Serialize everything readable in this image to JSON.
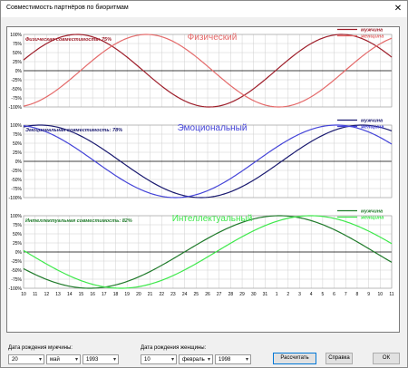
{
  "window": {
    "title": "Совместимость партнёров по биоритмам",
    "close_glyph": "✕"
  },
  "panels": [
    {
      "key": "physical",
      "heading": "Физический",
      "compat_text": "Физическая совместимость: 75%",
      "color_light": "#e46a6a",
      "color_dark": "#9e1e2a",
      "legend": [
        "мужчина",
        "женщина"
      ]
    },
    {
      "key": "emotional",
      "heading": "Эмоциональный",
      "compat_text": "Эмоциональная совместимость: 78%",
      "color_light": "#4444d8",
      "color_dark": "#1a1a70",
      "legend": [
        "мужчина",
        "женщина"
      ]
    },
    {
      "key": "intellectual",
      "heading": "Интеллектуальный",
      "compat_text": "Интеллектуальная совместимость: 82%",
      "color_light": "#3de84a",
      "color_dark": "#1f7a2a",
      "legend": [
        "мужчина",
        "женщина"
      ]
    }
  ],
  "y_ticks": [
    "100%",
    "75%",
    "50%",
    "25%",
    "0%",
    "-25%",
    "-50%",
    "-75%",
    "-100%"
  ],
  "x_ticks": [
    "10",
    "11",
    "12",
    "13",
    "14",
    "15",
    "16",
    "17",
    "18",
    "19",
    "20",
    "21",
    "22",
    "23",
    "24",
    "25",
    "26",
    "27",
    "28",
    "29",
    "30",
    "31",
    "1",
    "2",
    "3",
    "4",
    "5",
    "6",
    "7",
    "8",
    "9",
    "10",
    "11"
  ],
  "chart_data": [
    {
      "type": "line",
      "title": "Физический",
      "subtitle": "Физическая совместимость: 75%",
      "x": [
        "10",
        "11",
        "12",
        "13",
        "14",
        "15",
        "16",
        "17",
        "18",
        "19",
        "20",
        "21",
        "22",
        "23",
        "24",
        "25",
        "26",
        "27",
        "28",
        "29",
        "30",
        "31",
        "1",
        "2",
        "3",
        "4",
        "5",
        "6",
        "7",
        "8",
        "9",
        "10",
        "11"
      ],
      "ylim": [
        -100,
        100
      ],
      "series": [
        {
          "name": "мужчина",
          "period": 23,
          "phase": 0.3,
          "values_desc": "sine, 23-day period"
        },
        {
          "name": "женщина",
          "period": 23,
          "phase": -1.35
        }
      ]
    },
    {
      "type": "line",
      "title": "Эмоциональный",
      "subtitle": "Эмоциональная совместимость: 78%",
      "x": [
        "10",
        "11",
        "12",
        "13",
        "14",
        "15",
        "16",
        "17",
        "18",
        "19",
        "20",
        "21",
        "22",
        "23",
        "24",
        "25",
        "26",
        "27",
        "28",
        "29",
        "30",
        "31",
        "1",
        "2",
        "3",
        "4",
        "5",
        "6",
        "7",
        "8",
        "9",
        "10",
        "11"
      ],
      "ylim": [
        -100,
        100
      ],
      "series": [
        {
          "name": "мужчина",
          "period": 28,
          "phase": 1.25
        },
        {
          "name": "женщина",
          "period": 28,
          "phase": 1.75
        }
      ]
    },
    {
      "type": "line",
      "title": "Интеллектуальный",
      "subtitle": "Интеллектуальная совместимость: 82%",
      "x": [
        "10",
        "11",
        "12",
        "13",
        "14",
        "15",
        "16",
        "17",
        "18",
        "19",
        "20",
        "21",
        "22",
        "23",
        "24",
        "25",
        "26",
        "27",
        "28",
        "29",
        "30",
        "31",
        "1",
        "2",
        "3",
        "4",
        "5",
        "6",
        "7",
        "8",
        "9",
        "10",
        "11"
      ],
      "ylim": [
        -100,
        100
      ],
      "series": [
        {
          "name": "мужчина",
          "period": 33,
          "phase": 3.62
        },
        {
          "name": "женщина",
          "period": 33,
          "phase": 3.1
        }
      ]
    }
  ],
  "form": {
    "male_label": "Дата рождения мужчины:",
    "male_day": "20",
    "male_month": "май",
    "male_year": "1993",
    "female_label": "Дата рождения женщины:",
    "female_day": "10",
    "female_month": "февраль",
    "female_year": "1998",
    "calc_button": "Рассчитать",
    "help_button": "Справка",
    "ok_button": "ОК"
  }
}
